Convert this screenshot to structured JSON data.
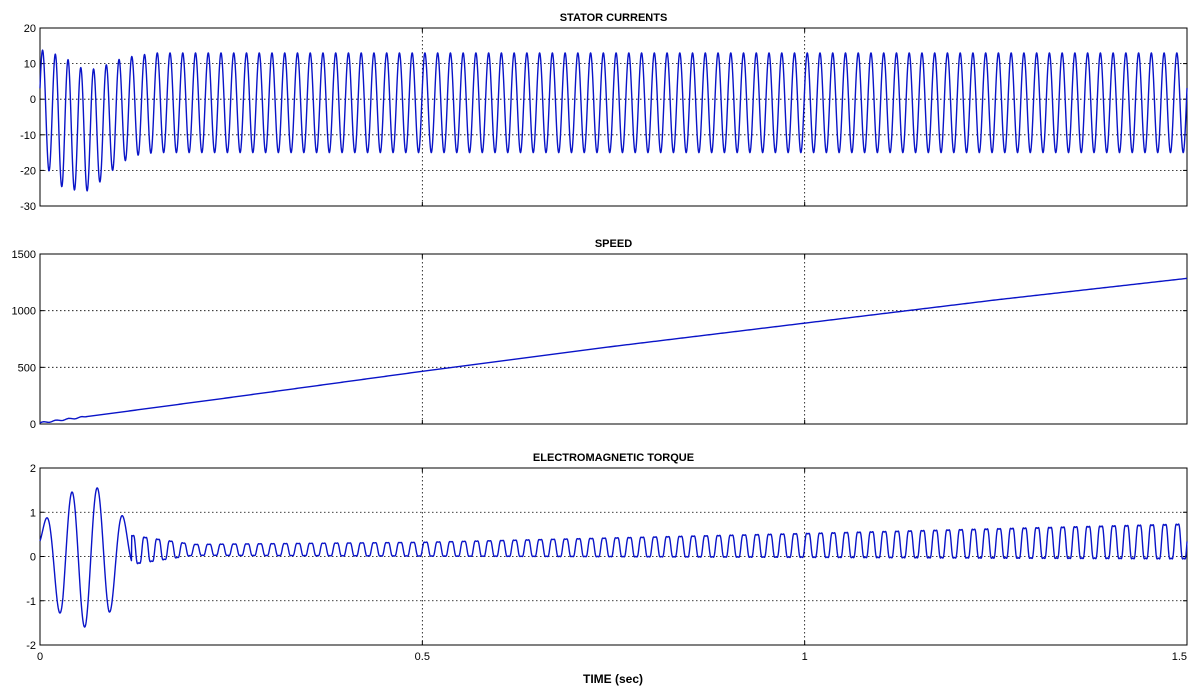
{
  "colors": {
    "trace": "#0a14c8",
    "axes": "#000000",
    "background": "#ffffff"
  },
  "xaxis": {
    "label": "TIME (sec)",
    "range": [
      0,
      1.5
    ],
    "ticks": [
      0,
      0.5,
      1,
      1.5
    ],
    "tick_labels": [
      "0",
      "0.5",
      "1",
      "1.5"
    ]
  },
  "chart_data": [
    {
      "type": "line",
      "title": "STATOR CURRENTS",
      "xlabel": "TIME (sec)",
      "ylabel": "",
      "xlim": [
        0,
        1.5
      ],
      "ylim": [
        -30,
        20
      ],
      "yticks": [
        20,
        10,
        0,
        -10,
        -20,
        -30
      ],
      "ytick_labels": [
        "20",
        "10",
        "0",
        "-10",
        "-20",
        "-30"
      ],
      "grid": true,
      "signal": {
        "kind": "sinusoid",
        "frequency_hz": 60,
        "steady_upper": 13,
        "steady_lower": -15,
        "startup_envelope": [
          [
            0.0,
            14,
            -17
          ],
          [
            0.03,
            12,
            -25
          ],
          [
            0.06,
            8,
            -26
          ],
          [
            0.08,
            9,
            -23
          ],
          [
            0.1,
            11,
            -19
          ],
          [
            0.12,
            12,
            -16
          ],
          [
            0.15,
            13,
            -15
          ],
          [
            1.5,
            13,
            -15
          ]
        ]
      }
    },
    {
      "type": "line",
      "title": "SPEED",
      "xlabel": "TIME (sec)",
      "ylabel": "",
      "xlim": [
        0,
        1.5
      ],
      "ylim": [
        0,
        1500
      ],
      "yticks": [
        1500,
        1000,
        500,
        0
      ],
      "ytick_labels": [
        "1500",
        "1000",
        "500",
        "0"
      ],
      "grid": true,
      "x": [
        0,
        0.25,
        0.5,
        0.75,
        1.0,
        1.25,
        1.5
      ],
      "y": [
        10,
        235,
        465,
        685,
        890,
        1095,
        1285
      ]
    },
    {
      "type": "line",
      "title": "ELECTROMAGNETIC TORQUE",
      "xlabel": "TIME (sec)",
      "ylabel": "",
      "xlim": [
        0,
        1.5
      ],
      "ylim": [
        -2,
        2
      ],
      "yticks": [
        2,
        1,
        0,
        -1,
        -2
      ],
      "ytick_labels": [
        "2",
        "1",
        "0",
        "-1",
        "-2"
      ],
      "grid": true,
      "signal": {
        "kind": "oscillation",
        "frequency_hz": 60,
        "envelope": [
          [
            0.0,
            0.7,
            0.0
          ],
          [
            0.03,
            1.3,
            -1.5
          ],
          [
            0.06,
            1.7,
            -1.6
          ],
          [
            0.09,
            1.4,
            -1.3
          ],
          [
            0.12,
            0.6,
            -0.3
          ],
          [
            0.2,
            0.32,
            -0.02
          ],
          [
            0.5,
            0.38,
            -0.05
          ],
          [
            1.0,
            0.62,
            -0.12
          ],
          [
            1.5,
            0.88,
            -0.2
          ]
        ]
      }
    }
  ]
}
